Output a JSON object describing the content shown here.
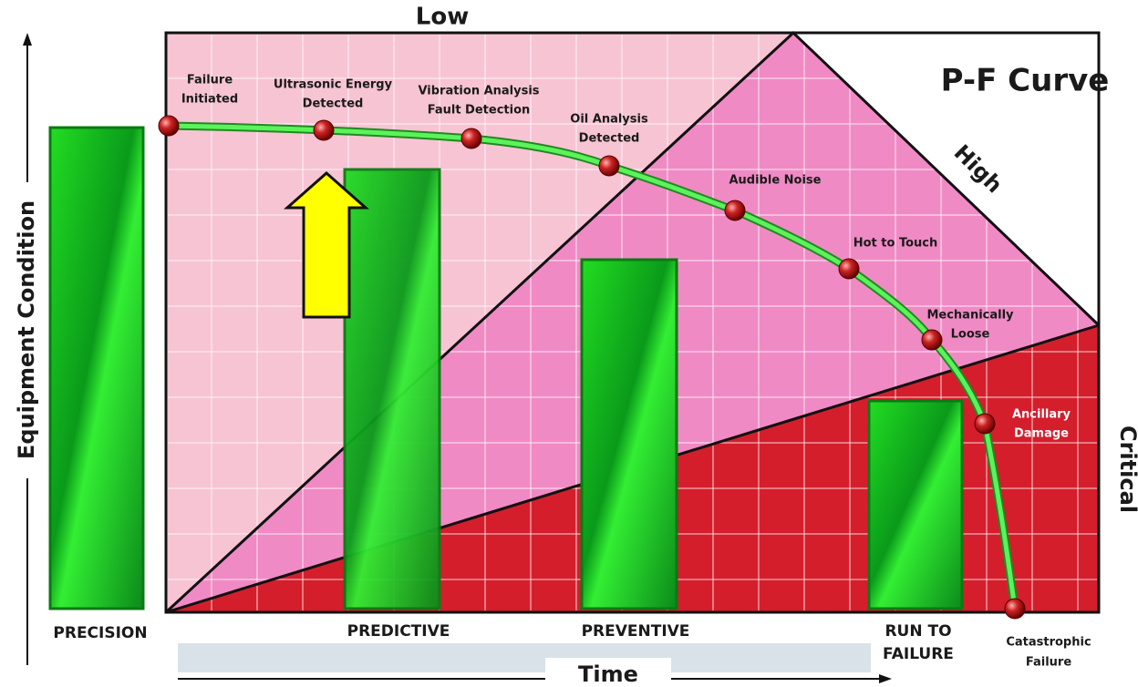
{
  "title": "P-F Curve",
  "zones": {
    "low": "Low",
    "high": "High",
    "critical": "Critical"
  },
  "axes": {
    "y": "Equipment Condition",
    "x": "Time"
  },
  "points": [
    {
      "lines": [
        "Failure",
        "Initiated"
      ]
    },
    {
      "lines": [
        "Ultrasonic Energy",
        "Detected"
      ]
    },
    {
      "lines": [
        "Vibration Analysis",
        "Fault Detection"
      ]
    },
    {
      "lines": [
        "Oil Analysis",
        "Detected"
      ]
    },
    {
      "lines": [
        "Audible Noise"
      ]
    },
    {
      "lines": [
        "Hot to Touch"
      ]
    },
    {
      "lines": [
        "Mechanically",
        "Loose"
      ]
    },
    {
      "lines": [
        "Ancillary",
        "Damage"
      ]
    },
    {
      "lines": [
        "Catastrophic",
        "Failure"
      ]
    }
  ],
  "strategies": [
    {
      "lines": [
        "PRECISION"
      ]
    },
    {
      "lines": [
        "PREDICTIVE"
      ]
    },
    {
      "lines": [
        "PREVENTIVE"
      ]
    },
    {
      "lines": [
        "RUN TO",
        "FAILURE"
      ]
    }
  ]
}
